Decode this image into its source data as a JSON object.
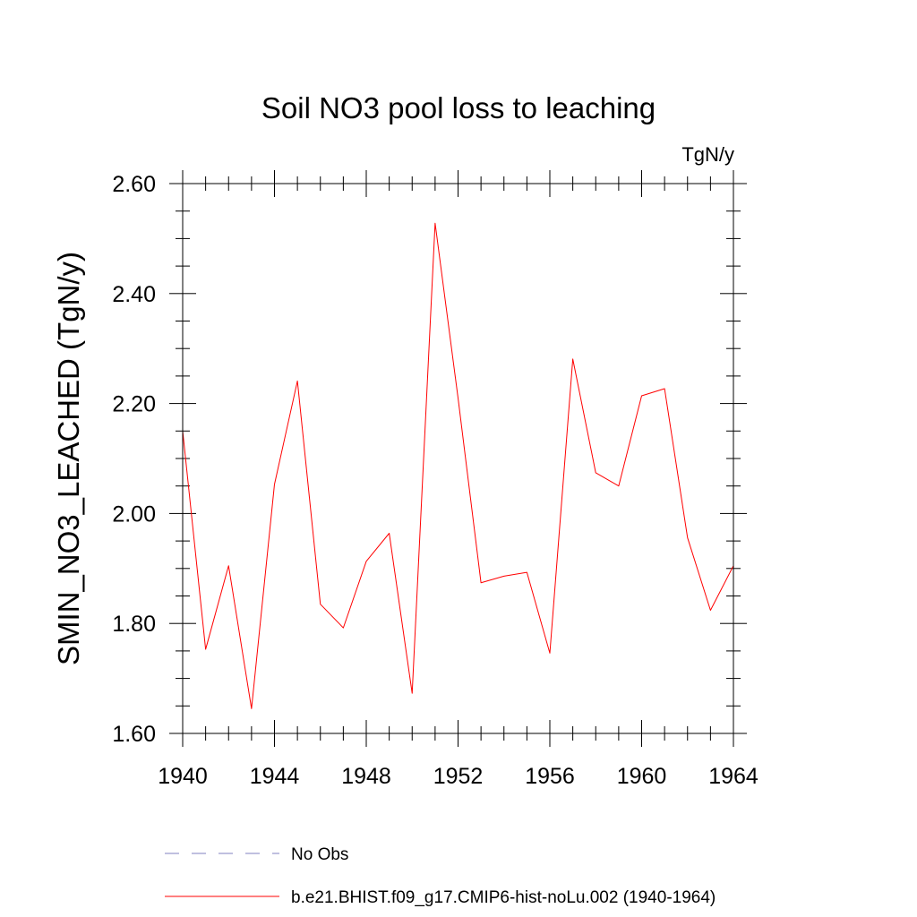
{
  "chart_data": {
    "type": "line",
    "title": "Soil NO3 pool loss to leaching",
    "units_label": "TgN/y",
    "ylabel": "SMIN_NO3_LEACHED  (TgN/y)",
    "xlabel": "",
    "xlim": [
      1940,
      1964
    ],
    "ylim": [
      1.6,
      2.6
    ],
    "x_ticks": [
      1940,
      1944,
      1948,
      1952,
      1956,
      1960,
      1964
    ],
    "x_tick_labels": [
      "1940",
      "1944",
      "1948",
      "1952",
      "1956",
      "1960",
      "1964"
    ],
    "y_ticks": [
      1.6,
      1.8,
      2.0,
      2.2,
      2.4,
      2.6
    ],
    "y_tick_labels": [
      "1.60",
      "1.80",
      "2.00",
      "2.20",
      "2.40",
      "2.60"
    ],
    "grid": false,
    "legend_position": "bottom",
    "series": [
      {
        "name": "No Obs",
        "style": "dashed",
        "color": "#8080c0",
        "x": [],
        "values": []
      },
      {
        "name": "b.e21.BHIST.f09_g17.CMIP6-hist-noLu.002 (1940-1964)",
        "style": "solid",
        "color": "#ff0000",
        "x": [
          1940,
          1941,
          1942,
          1943,
          1944,
          1945,
          1946,
          1947,
          1948,
          1949,
          1950,
          1951,
          1952,
          1953,
          1954,
          1955,
          1956,
          1957,
          1958,
          1959,
          1960,
          1961,
          1962,
          1963,
          1964
        ],
        "values": [
          2.15,
          1.753,
          1.905,
          1.645,
          2.053,
          2.241,
          1.835,
          1.792,
          1.913,
          1.964,
          1.673,
          2.528,
          2.21,
          1.874,
          1.886,
          1.893,
          1.746,
          2.281,
          2.074,
          2.05,
          2.214,
          2.227,
          1.956,
          1.824,
          1.905
        ]
      }
    ]
  }
}
